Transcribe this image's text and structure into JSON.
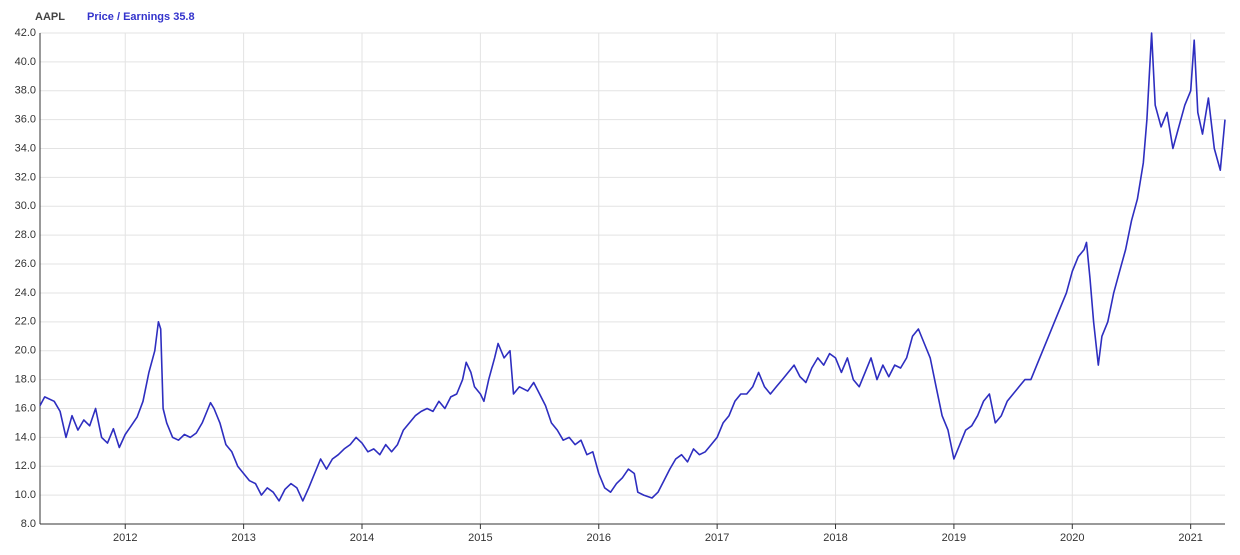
{
  "chart_data": {
    "type": "line",
    "title": "AAPL",
    "x": [
      2011.28,
      2011.32,
      2011.4,
      2011.45,
      2011.5,
      2011.55,
      2011.6,
      2011.65,
      2011.7,
      2011.75,
      2011.8,
      2011.85,
      2011.9,
      2011.95,
      2012.0,
      2012.05,
      2012.1,
      2012.15,
      2012.2,
      2012.25,
      2012.28,
      2012.3,
      2012.32,
      2012.35,
      2012.4,
      2012.45,
      2012.5,
      2012.55,
      2012.6,
      2012.65,
      2012.7,
      2012.72,
      2012.75,
      2012.8,
      2012.85,
      2012.9,
      2012.95,
      2013.0,
      2013.05,
      2013.1,
      2013.15,
      2013.2,
      2013.25,
      2013.3,
      2013.35,
      2013.4,
      2013.45,
      2013.5,
      2013.55,
      2013.6,
      2013.65,
      2013.7,
      2013.75,
      2013.8,
      2013.85,
      2013.9,
      2013.95,
      2014.0,
      2014.05,
      2014.1,
      2014.15,
      2014.2,
      2014.25,
      2014.3,
      2014.35,
      2014.4,
      2014.45,
      2014.5,
      2014.55,
      2014.6,
      2014.65,
      2014.7,
      2014.75,
      2014.8,
      2014.85,
      2014.88,
      2014.92,
      2014.95,
      2015.0,
      2015.03,
      2015.07,
      2015.12,
      2015.15,
      2015.2,
      2015.25,
      2015.28,
      2015.33,
      2015.4,
      2015.45,
      2015.5,
      2015.55,
      2015.6,
      2015.65,
      2015.7,
      2015.75,
      2015.8,
      2015.85,
      2015.9,
      2015.95,
      2016.0,
      2016.05,
      2016.1,
      2016.15,
      2016.2,
      2016.25,
      2016.3,
      2016.33,
      2016.38,
      2016.45,
      2016.5,
      2016.55,
      2016.6,
      2016.65,
      2016.7,
      2016.75,
      2016.8,
      2016.85,
      2016.9,
      2016.95,
      2017.0,
      2017.05,
      2017.1,
      2017.15,
      2017.2,
      2017.25,
      2017.3,
      2017.35,
      2017.4,
      2017.45,
      2017.5,
      2017.55,
      2017.6,
      2017.65,
      2017.7,
      2017.75,
      2017.8,
      2017.85,
      2017.9,
      2017.95,
      2018.0,
      2018.05,
      2018.1,
      2018.15,
      2018.2,
      2018.25,
      2018.3,
      2018.35,
      2018.4,
      2018.45,
      2018.5,
      2018.55,
      2018.6,
      2018.65,
      2018.7,
      2018.75,
      2018.8,
      2018.85,
      2018.9,
      2018.95,
      2019.0,
      2019.05,
      2019.1,
      2019.15,
      2019.2,
      2019.25,
      2019.3,
      2019.35,
      2019.4,
      2019.45,
      2019.5,
      2019.55,
      2019.6,
      2019.65,
      2019.7,
      2019.75,
      2019.8,
      2019.85,
      2019.9,
      2019.95,
      2020.0,
      2020.05,
      2020.1,
      2020.12,
      2020.15,
      2020.18,
      2020.22,
      2020.25,
      2020.3,
      2020.35,
      2020.4,
      2020.45,
      2020.5,
      2020.55,
      2020.6,
      2020.63,
      2020.67,
      2020.7,
      2020.75,
      2020.8,
      2020.85,
      2020.9,
      2020.95,
      2021.0,
      2021.03,
      2021.06,
      2021.1,
      2021.15,
      2021.2,
      2021.25,
      2021.29
    ],
    "series": [
      {
        "name": "Price / Earnings 35.8",
        "color": "#2e2ec0",
        "values": [
          16.2,
          16.8,
          16.5,
          15.8,
          14.0,
          15.5,
          14.5,
          15.2,
          14.8,
          16.0,
          14.0,
          13.6,
          14.6,
          13.3,
          14.2,
          14.8,
          15.4,
          16.5,
          18.5,
          20.0,
          22.0,
          21.5,
          16.0,
          15.0,
          14.0,
          13.8,
          14.2,
          14.0,
          14.3,
          15.0,
          16.0,
          16.4,
          16.0,
          15.0,
          13.5,
          13.0,
          12.0,
          11.5,
          11.0,
          10.8,
          10.0,
          10.5,
          10.2,
          9.6,
          10.4,
          10.8,
          10.5,
          9.6,
          10.5,
          11.5,
          12.5,
          11.8,
          12.5,
          12.8,
          13.2,
          13.5,
          14.0,
          13.6,
          13.0,
          13.2,
          12.8,
          13.5,
          13.0,
          13.5,
          14.5,
          15.0,
          15.5,
          15.8,
          16.0,
          15.8,
          16.5,
          16.0,
          16.8,
          17.0,
          18.0,
          19.2,
          18.5,
          17.5,
          17.0,
          16.5,
          18.0,
          19.5,
          20.5,
          19.5,
          20.0,
          17.0,
          17.5,
          17.2,
          17.8,
          17.0,
          16.2,
          15.0,
          14.5,
          13.8,
          14.0,
          13.5,
          13.8,
          12.8,
          13.0,
          11.5,
          10.5,
          10.2,
          10.8,
          11.2,
          11.8,
          11.5,
          10.2,
          10.0,
          9.8,
          10.2,
          11.0,
          11.8,
          12.5,
          12.8,
          12.3,
          13.2,
          12.8,
          13.0,
          13.5,
          14.0,
          15.0,
          15.5,
          16.5,
          17.0,
          17.0,
          17.5,
          18.5,
          17.5,
          17.0,
          17.5,
          18.0,
          18.5,
          19.0,
          18.2,
          17.8,
          18.8,
          19.5,
          19.0,
          19.8,
          19.5,
          18.5,
          19.5,
          18.0,
          17.5,
          18.5,
          19.5,
          18.0,
          19.0,
          18.2,
          19.0,
          18.8,
          19.5,
          21.0,
          21.5,
          20.5,
          19.5,
          17.5,
          15.5,
          14.5,
          12.5,
          13.5,
          14.5,
          14.8,
          15.5,
          16.5,
          17.0,
          15.0,
          15.5,
          16.5,
          17.0,
          17.5,
          18.0,
          18.0,
          19.0,
          20.0,
          21.0,
          22.0,
          23.0,
          24.0,
          25.5,
          26.5,
          27.0,
          27.5,
          25.0,
          22.0,
          19.0,
          21.0,
          22.0,
          24.0,
          25.5,
          27.0,
          29.0,
          30.5,
          33.0,
          36.0,
          42.0,
          37.0,
          35.5,
          36.5,
          34.0,
          35.5,
          37.0,
          38.0,
          41.5,
          36.5,
          35.0,
          37.5,
          34.0,
          32.5,
          36.0
        ]
      }
    ],
    "xlim": [
      2011.28,
      2021.29
    ],
    "xticks": [
      2012,
      2013,
      2014,
      2015,
      2016,
      2017,
      2018,
      2019,
      2020,
      2021
    ],
    "ylim": [
      8,
      42
    ],
    "yticks": [
      {
        "value": 8,
        "label": "8.0"
      },
      {
        "value": 10,
        "label": "10.0"
      },
      {
        "value": 12,
        "label": "12.0"
      },
      {
        "value": 14,
        "label": "14.0"
      },
      {
        "value": 16,
        "label": "16.0"
      },
      {
        "value": 18,
        "label": "18.0"
      },
      {
        "value": 20,
        "label": "20.0"
      },
      {
        "value": 22,
        "label": "22.0"
      },
      {
        "value": 24,
        "label": "24.0"
      },
      {
        "value": 26,
        "label": "26.0"
      },
      {
        "value": 28,
        "label": "28.0"
      },
      {
        "value": 30,
        "label": "30.0"
      },
      {
        "value": 32,
        "label": "32.0"
      },
      {
        "value": 34,
        "label": "34.0"
      },
      {
        "value": 36,
        "label": "36.0"
      },
      {
        "value": 38,
        "label": "38.0"
      },
      {
        "value": 40,
        "label": "40.0"
      },
      {
        "value": 42,
        "label": "42.0"
      }
    ],
    "grid": true
  }
}
